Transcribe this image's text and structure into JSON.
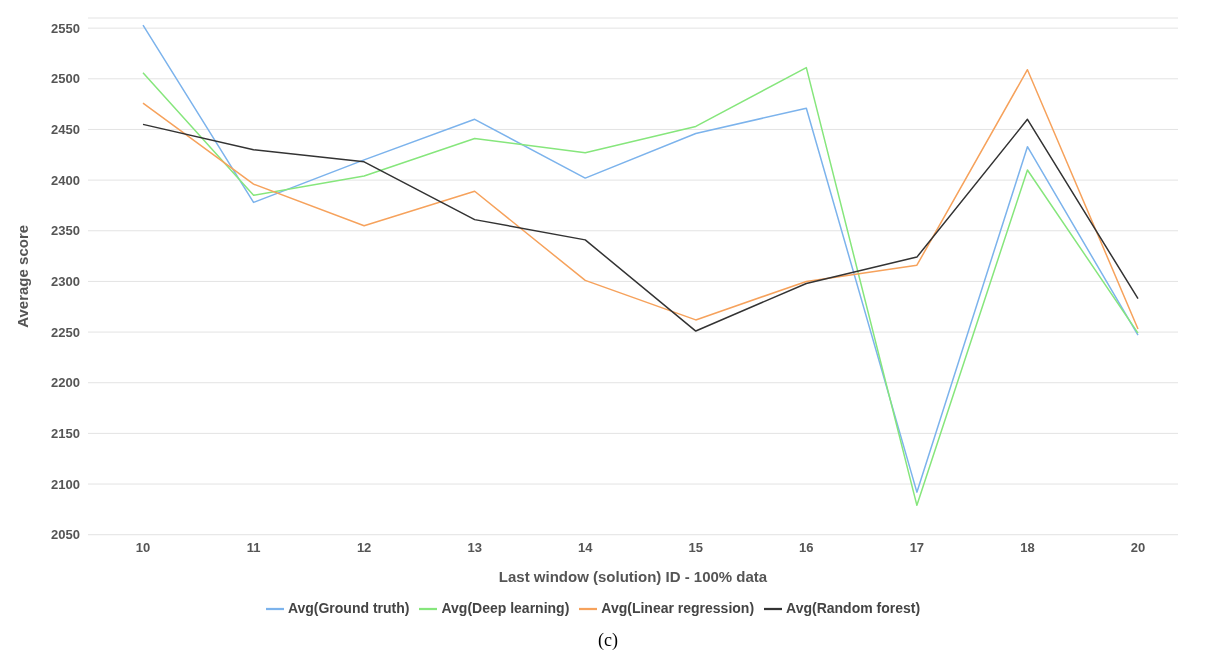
{
  "chart_data": {
    "type": "line",
    "xlabel": "Last window (solution) ID - 100% data",
    "ylabel": "Average score",
    "categories": [
      "10",
      "11",
      "12",
      "13",
      "14",
      "15",
      "16",
      "17",
      "18",
      "20"
    ],
    "series": [
      {
        "name": "Avg(Ground truth)",
        "color": "#7cb3ec",
        "values": [
          2553,
          2378,
          2420,
          2460,
          2402,
          2446,
          2471,
          2092,
          2433,
          2247
        ]
      },
      {
        "name": "Avg(Deep learning)",
        "color": "#86e67c",
        "values": [
          2506,
          2385,
          2404,
          2441,
          2427,
          2453,
          2511,
          2079,
          2410,
          2249
        ]
      },
      {
        "name": "Avg(Linear regression)",
        "color": "#f6a25c",
        "values": [
          2476,
          2396,
          2355,
          2389,
          2301,
          2262,
          2300,
          2316,
          2509,
          2253
        ]
      },
      {
        "name": "Avg(Random forest)",
        "color": "#333333",
        "values": [
          2455,
          2430,
          2418,
          2361,
          2341,
          2251,
          2298,
          2324,
          2460,
          2283
        ]
      }
    ],
    "ylim": [
      2050,
      2560
    ],
    "yticks": [
      2050,
      2100,
      2150,
      2200,
      2250,
      2300,
      2350,
      2400,
      2450,
      2500,
      2550
    ],
    "grid": "y",
    "legend": "bottom",
    "marker": "none",
    "line_style": "solid",
    "annotations": [
      "(c)"
    ]
  }
}
